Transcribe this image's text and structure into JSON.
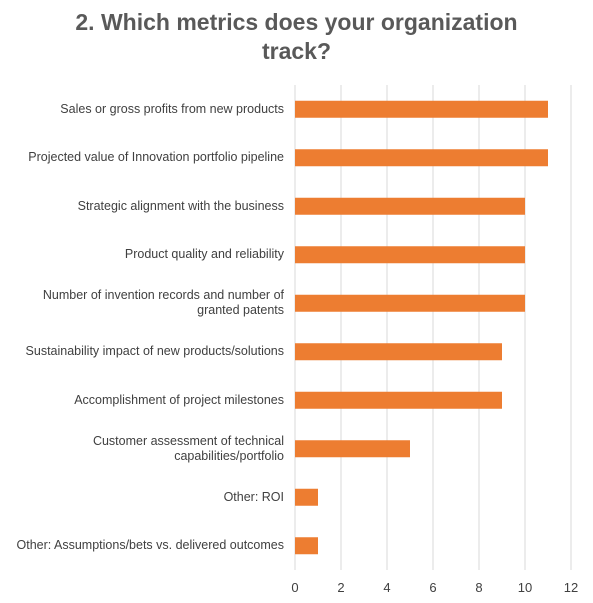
{
  "chart_data": {
    "type": "bar",
    "orientation": "horizontal",
    "title": "2. Which metrics does your organization track?",
    "categories": [
      "Sales or gross profits from new products",
      "Projected value of Innovation portfolio pipeline",
      "Strategic alignment with the business",
      "Product quality and reliability",
      "Number of invention records and number of granted patents",
      "Sustainability impact of new products/solutions",
      "Accomplishment of project milestones",
      "Customer assessment of technical capabilities/portfolio",
      "Other: ROI",
      "Other: Assumptions/bets vs. delivered outcomes"
    ],
    "values": [
      11,
      11,
      10,
      10,
      10,
      9,
      9,
      5,
      1,
      1
    ],
    "xlim": [
      0,
      12
    ],
    "xticks": [
      "0",
      "2",
      "4",
      "6",
      "8",
      "10",
      "12"
    ],
    "grid": "vertical",
    "legend": "none",
    "bar_color": "#ED7D31",
    "grid_color": "#D9D9D9",
    "text_color": "#404040",
    "title_color": "#595959"
  }
}
